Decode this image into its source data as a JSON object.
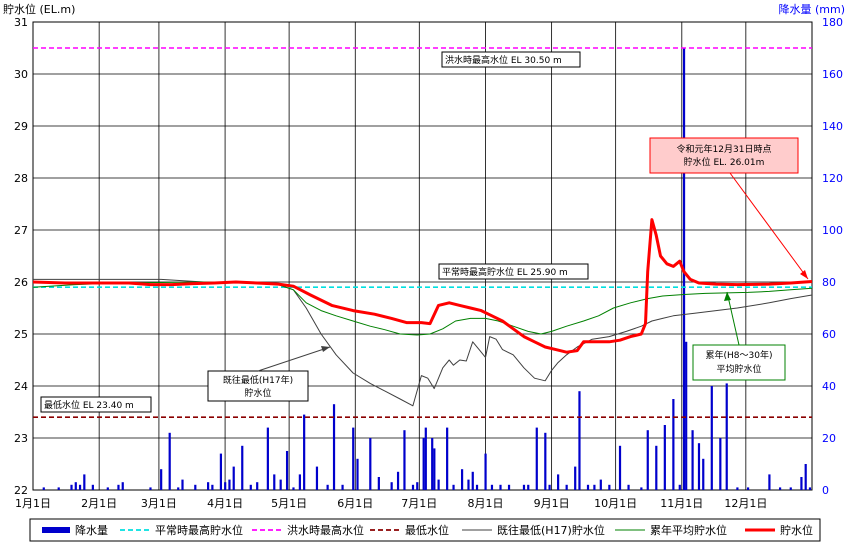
{
  "chart_data": {
    "type": "line",
    "left_axis": {
      "label": "貯水位 (EL.m)",
      "ylim": [
        22,
        31
      ],
      "ticks": [
        "22",
        "23",
        "24",
        "25",
        "26",
        "27",
        "28",
        "29",
        "30",
        "31"
      ]
    },
    "right_axis": {
      "label": "降水量 (mm)",
      "ylim": [
        0,
        180
      ],
      "ticks": [
        "0",
        "20",
        "40",
        "60",
        "80",
        "100",
        "120",
        "140",
        "160",
        "180"
      ]
    },
    "x_days": 365,
    "x_ticks": [
      {
        "day": 0,
        "label": "1月1日"
      },
      {
        "day": 31,
        "label": "2月1日"
      },
      {
        "day": 59,
        "label": "3月1日"
      },
      {
        "day": 90,
        "label": "4月1日"
      },
      {
        "day": 120,
        "label": "5月1日"
      },
      {
        "day": 151,
        "label": "6月1日"
      },
      {
        "day": 181,
        "label": "7月1日"
      },
      {
        "day": 212,
        "label": "8月1日"
      },
      {
        "day": 243,
        "label": "9月1日"
      },
      {
        "day": 273,
        "label": "10月1日"
      },
      {
        "day": 304,
        "label": "11月1日"
      },
      {
        "day": 334,
        "label": "12月1日"
      }
    ],
    "grid": true,
    "legend_position": "bottom",
    "reference_lines": [
      {
        "name": "平常時最高貯水位",
        "value": 25.9,
        "color": "#00e0e0",
        "style": "dashed"
      },
      {
        "name": "洪水時最高水位",
        "value": 30.5,
        "color": "#ff00ff",
        "style": "dashed"
      },
      {
        "name": "最低水位",
        "value": 23.4,
        "color": "#8b0000",
        "style": "dashed"
      }
    ],
    "series": [
      {
        "name": "既往最低(H17)貯水位",
        "color": "#404040",
        "width": 1,
        "points": [
          [
            0,
            26.05
          ],
          [
            20,
            26.05
          ],
          [
            40,
            26.05
          ],
          [
            60,
            26.05
          ],
          [
            80,
            26.0
          ],
          [
            100,
            26.0
          ],
          [
            115,
            25.95
          ],
          [
            122,
            25.85
          ],
          [
            128,
            25.5
          ],
          [
            135,
            25.0
          ],
          [
            142,
            24.6
          ],
          [
            150,
            24.25
          ],
          [
            158,
            24.05
          ],
          [
            165,
            23.9
          ],
          [
            172,
            23.75
          ],
          [
            178,
            23.62
          ],
          [
            182,
            24.2
          ],
          [
            185,
            24.15
          ],
          [
            188,
            23.95
          ],
          [
            192,
            24.35
          ],
          [
            195,
            24.5
          ],
          [
            197,
            24.4
          ],
          [
            200,
            24.5
          ],
          [
            203,
            24.48
          ],
          [
            206,
            24.85
          ],
          [
            209,
            24.7
          ],
          [
            212,
            24.55
          ],
          [
            214,
            24.95
          ],
          [
            217,
            24.9
          ],
          [
            220,
            24.7
          ],
          [
            225,
            24.6
          ],
          [
            230,
            24.35
          ],
          [
            235,
            24.15
          ],
          [
            240,
            24.1
          ],
          [
            243,
            24.3
          ],
          [
            246,
            24.45
          ],
          [
            250,
            24.6
          ],
          [
            255,
            24.75
          ],
          [
            262,
            24.9
          ],
          [
            270,
            24.95
          ],
          [
            278,
            25.05
          ],
          [
            285,
            25.15
          ],
          [
            290,
            25.25
          ],
          [
            295,
            25.3
          ],
          [
            300,
            25.35
          ],
          [
            310,
            25.4
          ],
          [
            320,
            25.45
          ],
          [
            330,
            25.5
          ],
          [
            345,
            25.6
          ],
          [
            355,
            25.68
          ],
          [
            365,
            25.75
          ]
        ]
      },
      {
        "name": "累年平均貯水位",
        "color": "#008000",
        "width": 1,
        "points": [
          [
            0,
            25.9
          ],
          [
            20,
            25.95
          ],
          [
            40,
            25.98
          ],
          [
            60,
            25.99
          ],
          [
            80,
            26.0
          ],
          [
            100,
            26.0
          ],
          [
            115,
            25.95
          ],
          [
            122,
            25.85
          ],
          [
            128,
            25.6
          ],
          [
            135,
            25.45
          ],
          [
            142,
            25.35
          ],
          [
            150,
            25.25
          ],
          [
            158,
            25.15
          ],
          [
            165,
            25.08
          ],
          [
            172,
            25.0
          ],
          [
            180,
            24.98
          ],
          [
            186,
            25.0
          ],
          [
            192,
            25.1
          ],
          [
            198,
            25.25
          ],
          [
            205,
            25.3
          ],
          [
            212,
            25.3
          ],
          [
            218,
            25.25
          ],
          [
            225,
            25.15
          ],
          [
            232,
            25.05
          ],
          [
            238,
            25.0
          ],
          [
            243,
            25.05
          ],
          [
            250,
            25.15
          ],
          [
            258,
            25.25
          ],
          [
            265,
            25.35
          ],
          [
            272,
            25.5
          ],
          [
            280,
            25.6
          ],
          [
            288,
            25.68
          ],
          [
            295,
            25.73
          ],
          [
            305,
            25.76
          ],
          [
            315,
            25.78
          ],
          [
            325,
            25.79
          ],
          [
            335,
            25.8
          ],
          [
            345,
            25.82
          ],
          [
            355,
            25.85
          ],
          [
            365,
            25.88
          ]
        ]
      },
      {
        "name": "貯水位",
        "color": "#ff0000",
        "width": 3,
        "points": [
          [
            0,
            26.0
          ],
          [
            15,
            25.98
          ],
          [
            30,
            25.98
          ],
          [
            45,
            25.98
          ],
          [
            55,
            25.95
          ],
          [
            65,
            25.95
          ],
          [
            75,
            25.97
          ],
          [
            85,
            25.98
          ],
          [
            95,
            26.0
          ],
          [
            105,
            25.98
          ],
          [
            115,
            25.96
          ],
          [
            122,
            25.92
          ],
          [
            130,
            25.75
          ],
          [
            140,
            25.55
          ],
          [
            150,
            25.45
          ],
          [
            160,
            25.38
          ],
          [
            168,
            25.3
          ],
          [
            175,
            25.22
          ],
          [
            182,
            25.22
          ],
          [
            186,
            25.2
          ],
          [
            190,
            25.55
          ],
          [
            195,
            25.6
          ],
          [
            200,
            25.55
          ],
          [
            205,
            25.5
          ],
          [
            210,
            25.45
          ],
          [
            215,
            25.35
          ],
          [
            220,
            25.25
          ],
          [
            225,
            25.1
          ],
          [
            230,
            24.95
          ],
          [
            235,
            24.85
          ],
          [
            240,
            24.75
          ],
          [
            245,
            24.7
          ],
          [
            250,
            24.65
          ],
          [
            255,
            24.68
          ],
          [
            258,
            24.85
          ],
          [
            263,
            24.85
          ],
          [
            270,
            24.85
          ],
          [
            275,
            24.88
          ],
          [
            280,
            24.95
          ],
          [
            285,
            25.0
          ],
          [
            287,
            25.2
          ],
          [
            288,
            26.2
          ],
          [
            290,
            27.2
          ],
          [
            292,
            26.9
          ],
          [
            294,
            26.5
          ],
          [
            297,
            26.35
          ],
          [
            300,
            26.3
          ],
          [
            303,
            26.4
          ],
          [
            305,
            26.2
          ],
          [
            308,
            26.05
          ],
          [
            312,
            25.98
          ],
          [
            320,
            25.96
          ],
          [
            330,
            25.95
          ],
          [
            345,
            25.96
          ],
          [
            355,
            25.98
          ],
          [
            365,
            26.01
          ]
        ]
      }
    ],
    "precipitation": {
      "name": "降水量",
      "color": "#0000cc",
      "bars": [
        [
          5,
          1
        ],
        [
          12,
          1
        ],
        [
          18,
          2
        ],
        [
          20,
          3
        ],
        [
          22,
          2
        ],
        [
          24,
          6
        ],
        [
          28,
          2
        ],
        [
          35,
          1
        ],
        [
          40,
          2
        ],
        [
          42,
          3
        ],
        [
          55,
          1
        ],
        [
          60,
          8
        ],
        [
          64,
          22
        ],
        [
          68,
          1
        ],
        [
          70,
          4
        ],
        [
          76,
          2
        ],
        [
          82,
          3
        ],
        [
          84,
          2
        ],
        [
          88,
          14
        ],
        [
          90,
          3
        ],
        [
          92,
          4
        ],
        [
          94,
          9
        ],
        [
          98,
          17
        ],
        [
          102,
          2
        ],
        [
          105,
          3
        ],
        [
          110,
          24
        ],
        [
          113,
          6
        ],
        [
          116,
          4
        ],
        [
          119,
          15
        ],
        [
          122,
          1
        ],
        [
          125,
          6
        ],
        [
          127,
          29
        ],
        [
          133,
          9
        ],
        [
          138,
          2
        ],
        [
          141,
          33
        ],
        [
          145,
          2
        ],
        [
          150,
          24
        ],
        [
          152,
          12
        ],
        [
          158,
          20
        ],
        [
          162,
          5
        ],
        [
          168,
          3
        ],
        [
          171,
          7
        ],
        [
          174,
          23
        ],
        [
          178,
          2
        ],
        [
          180,
          3
        ],
        [
          183,
          20
        ],
        [
          184,
          24
        ],
        [
          187,
          20
        ],
        [
          188,
          16
        ],
        [
          190,
          4
        ],
        [
          194,
          24
        ],
        [
          197,
          2
        ],
        [
          201,
          8
        ],
        [
          204,
          4
        ],
        [
          206,
          7
        ],
        [
          208,
          2
        ],
        [
          212,
          14
        ],
        [
          215,
          2
        ],
        [
          219,
          2
        ],
        [
          223,
          2
        ],
        [
          230,
          2
        ],
        [
          232,
          2
        ],
        [
          236,
          24
        ],
        [
          240,
          22
        ],
        [
          242,
          2
        ],
        [
          246,
          6
        ],
        [
          250,
          2
        ],
        [
          254,
          9
        ],
        [
          256,
          38
        ],
        [
          260,
          2
        ],
        [
          263,
          2
        ],
        [
          266,
          4
        ],
        [
          270,
          2
        ],
        [
          275,
          17
        ],
        [
          279,
          2
        ],
        [
          285,
          1
        ],
        [
          288,
          23
        ],
        [
          292,
          17
        ],
        [
          296,
          25
        ],
        [
          300,
          35
        ],
        [
          303,
          2
        ],
        [
          305,
          170
        ],
        [
          306,
          57
        ],
        [
          309,
          23
        ],
        [
          312,
          18
        ],
        [
          314,
          12
        ],
        [
          318,
          40
        ],
        [
          322,
          20
        ],
        [
          325,
          41
        ],
        [
          330,
          1
        ],
        [
          335,
          1
        ],
        [
          345,
          6
        ],
        [
          350,
          1
        ],
        [
          355,
          1
        ],
        [
          360,
          5
        ],
        [
          362,
          10
        ],
        [
          364,
          1
        ]
      ]
    },
    "annotations": [
      {
        "text": "洪水時最高水位 EL 30.50 m"
      },
      {
        "text": "平常時最高貯水位 EL 25.90 m"
      },
      {
        "text": "最低水位 EL 23.40 m"
      },
      {
        "text": "令和元年12月31日時点",
        "text2": "貯水位 EL. 26.01m"
      },
      {
        "text": "既往最低(H17年)",
        "text2": "貯水位"
      },
      {
        "text": "累年(H8～30年)",
        "text2": "平均貯水位"
      }
    ],
    "legend": [
      "降水量",
      "平常時最高貯水位",
      "洪水時最高水位",
      "最低水位",
      "既往最低(H17)貯水位",
      "累年平均貯水位",
      "貯水位"
    ]
  }
}
